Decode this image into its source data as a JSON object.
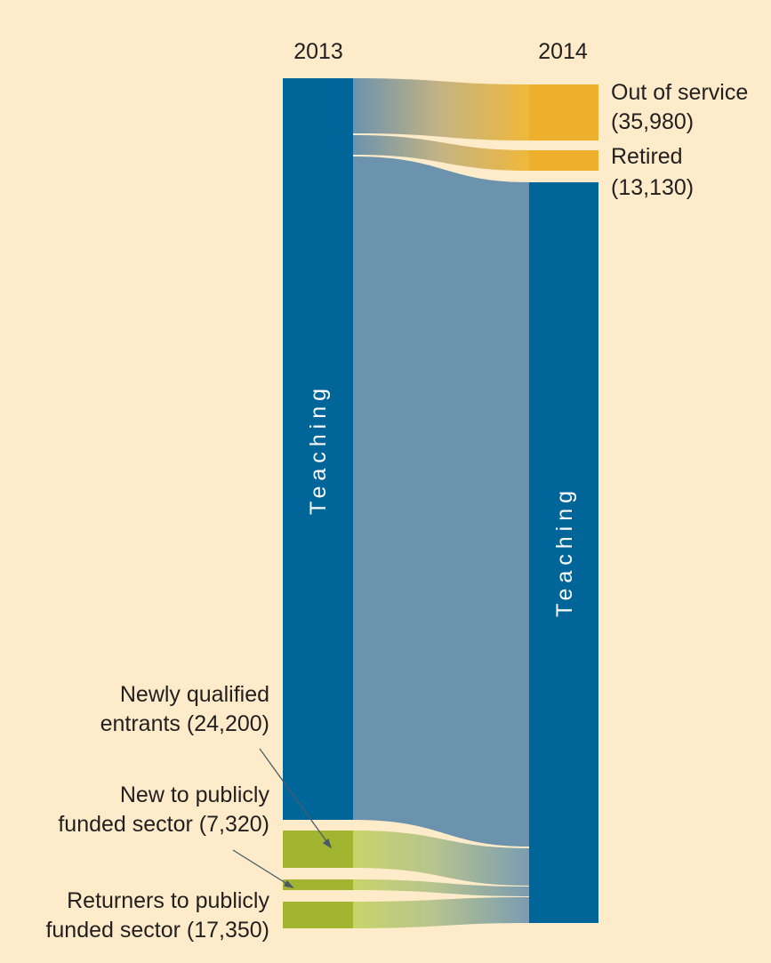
{
  "diagram": {
    "type": "sankey",
    "columns": {
      "left_year": "2013",
      "right_year": "2014"
    },
    "nodes": {
      "teaching_2013": {
        "label": "Teaching"
      },
      "teaching_2014": {
        "label": "Teaching"
      },
      "out_of_service": {
        "label_line1": "Out of service",
        "label_line2": "(35,980)",
        "value": 35980
      },
      "retired": {
        "label_line1": "Retired",
        "label_line2": "(13,130)",
        "value": 13130
      },
      "newly_qualified": {
        "label_line1": "Newly qualified",
        "label_line2": "entrants (24,200)",
        "value": 24200
      },
      "new_to_public": {
        "label_line1": "New to publicly",
        "label_line2": "funded sector (7,320)",
        "value": 7320
      },
      "returners": {
        "label_line1": "Returners to publicly",
        "label_line2": "funded sector (17,350)",
        "value": 17350
      }
    },
    "colors": {
      "background": "#fdebc9",
      "teaching": "#006699",
      "leavers": "#eeb02c",
      "entrants": "#a1b530",
      "flow_teaching": "#6b93ad",
      "annotation_line": "#4a5a68"
    }
  }
}
